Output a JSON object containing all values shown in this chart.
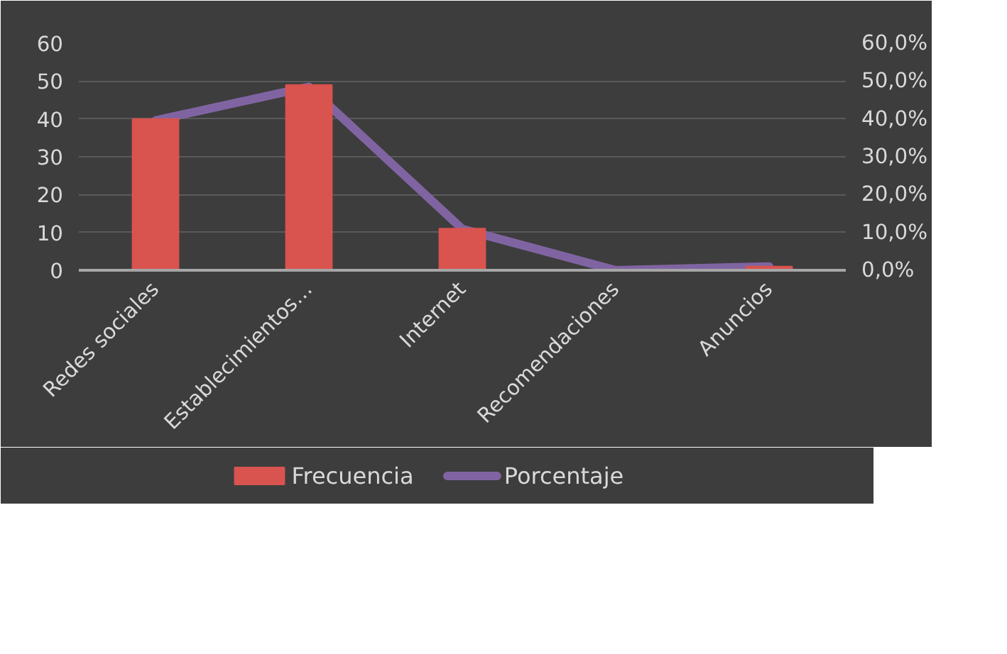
{
  "chart_data": {
    "type": "bar",
    "categories": [
      "Redes sociales",
      "Establecimientos…",
      "Internet",
      "Recomendaciones",
      "Anuncios"
    ],
    "series": [
      {
        "name": "Frecuencia",
        "color": "#d9534f",
        "values": [
          40,
          49,
          11,
          0,
          1
        ]
      },
      {
        "name": "Porcentaje",
        "type": "line",
        "axis": "y2",
        "color": "#8064a2",
        "values": [
          39.6,
          48.5,
          10.9,
          0,
          1.0
        ]
      }
    ],
    "ylim": [
      0,
      60
    ],
    "yticks": [
      0,
      10,
      20,
      30,
      40,
      50,
      60
    ],
    "y2lim": [
      0,
      60
    ],
    "y2ticks": [
      {
        "value": 0,
        "label": "0,0%"
      },
      {
        "value": 10,
        "label": "10,0%"
      },
      {
        "value": 20,
        "label": "20,0%"
      },
      {
        "value": 30,
        "label": "30,0%"
      },
      {
        "value": 40,
        "label": "40,0%"
      },
      {
        "value": 50,
        "label": "50,0%"
      },
      {
        "value": 60,
        "label": "60,0%"
      }
    ],
    "grid": "y",
    "legend": "bottom"
  }
}
